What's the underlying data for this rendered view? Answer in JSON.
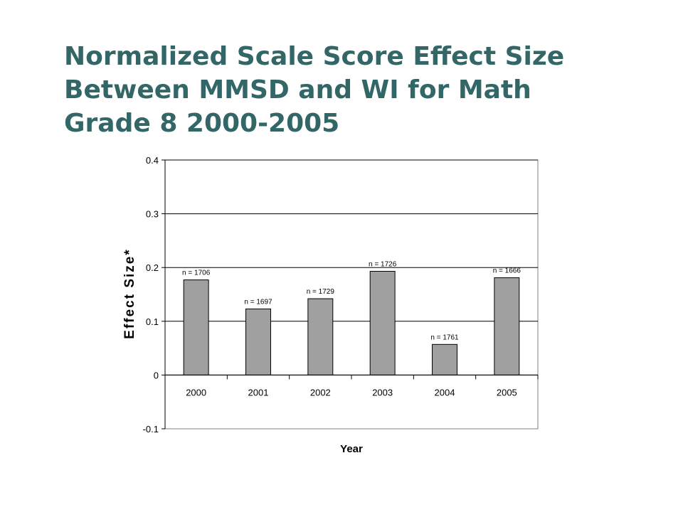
{
  "slide": {
    "title_lines": [
      "Normalized Scale Score Effect Size",
      "Between MMSD and WI for Math",
      "Grade 8 2000-2005"
    ],
    "title_color": "#336666"
  },
  "chart_data": {
    "type": "bar",
    "categories": [
      "2000",
      "2001",
      "2002",
      "2003",
      "2004",
      "2005"
    ],
    "values": [
      0.177,
      0.123,
      0.142,
      0.193,
      0.057,
      0.181
    ],
    "data_labels": [
      "n = 1706",
      "n = 1697",
      "n = 1729",
      "n = 1726",
      "n = 1761",
      "n = 1666"
    ],
    "xlabel": "Year",
    "ylabel": "Effect Size*",
    "ylim": [
      -0.1,
      0.4
    ],
    "yticks": [
      -0.1,
      0,
      0.1,
      0.2,
      0.3,
      0.4
    ],
    "ytick_labels": [
      "-0.1",
      "0",
      "0.1",
      "0.2",
      "0.3",
      "0.4"
    ],
    "gridlines": true,
    "bar_color": "#a0a0a0",
    "legend": "none"
  }
}
